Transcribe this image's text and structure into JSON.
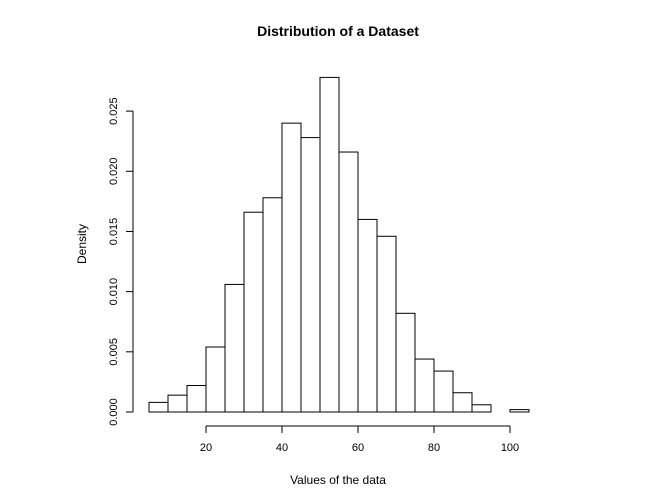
{
  "chart_data": {
    "type": "histogram",
    "title": "Distribution of a Dataset",
    "xlabel": "Values of the data",
    "ylabel": "Density",
    "bin_width": 5,
    "bins": [
      {
        "start": 5,
        "end": 10,
        "density": 0.0008
      },
      {
        "start": 10,
        "end": 15,
        "density": 0.0014
      },
      {
        "start": 15,
        "end": 20,
        "density": 0.0022
      },
      {
        "start": 20,
        "end": 25,
        "density": 0.0054
      },
      {
        "start": 25,
        "end": 30,
        "density": 0.0106
      },
      {
        "start": 30,
        "end": 35,
        "density": 0.0166
      },
      {
        "start": 35,
        "end": 40,
        "density": 0.0178
      },
      {
        "start": 40,
        "end": 45,
        "density": 0.024
      },
      {
        "start": 45,
        "end": 50,
        "density": 0.0228
      },
      {
        "start": 50,
        "end": 55,
        "density": 0.0278
      },
      {
        "start": 55,
        "end": 60,
        "density": 0.0216
      },
      {
        "start": 60,
        "end": 65,
        "density": 0.016
      },
      {
        "start": 65,
        "end": 70,
        "density": 0.0146
      },
      {
        "start": 70,
        "end": 75,
        "density": 0.0082
      },
      {
        "start": 75,
        "end": 80,
        "density": 0.0044
      },
      {
        "start": 80,
        "end": 85,
        "density": 0.0034
      },
      {
        "start": 85,
        "end": 90,
        "density": 0.0016
      },
      {
        "start": 90,
        "end": 95,
        "density": 0.0006
      },
      {
        "start": 95,
        "end": 100,
        "density": 0.0
      },
      {
        "start": 100,
        "end": 105,
        "density": 0.0002
      }
    ],
    "xlim": [
      5,
      105
    ],
    "ylim": [
      0,
      0.028
    ],
    "x_ticks": [
      20,
      40,
      60,
      80,
      100
    ],
    "x_tick_labels": [
      "20",
      "40",
      "60",
      "80",
      "100"
    ],
    "y_ticks": [
      0,
      0.005,
      0.01,
      0.015,
      0.02,
      0.025
    ],
    "y_tick_labels": [
      "0.000",
      "0.005",
      "0.010",
      "0.015",
      "0.020",
      "0.025"
    ],
    "grid": false,
    "colors": {
      "bar_fill": "#ffffff",
      "bar_stroke": "#000000"
    }
  }
}
